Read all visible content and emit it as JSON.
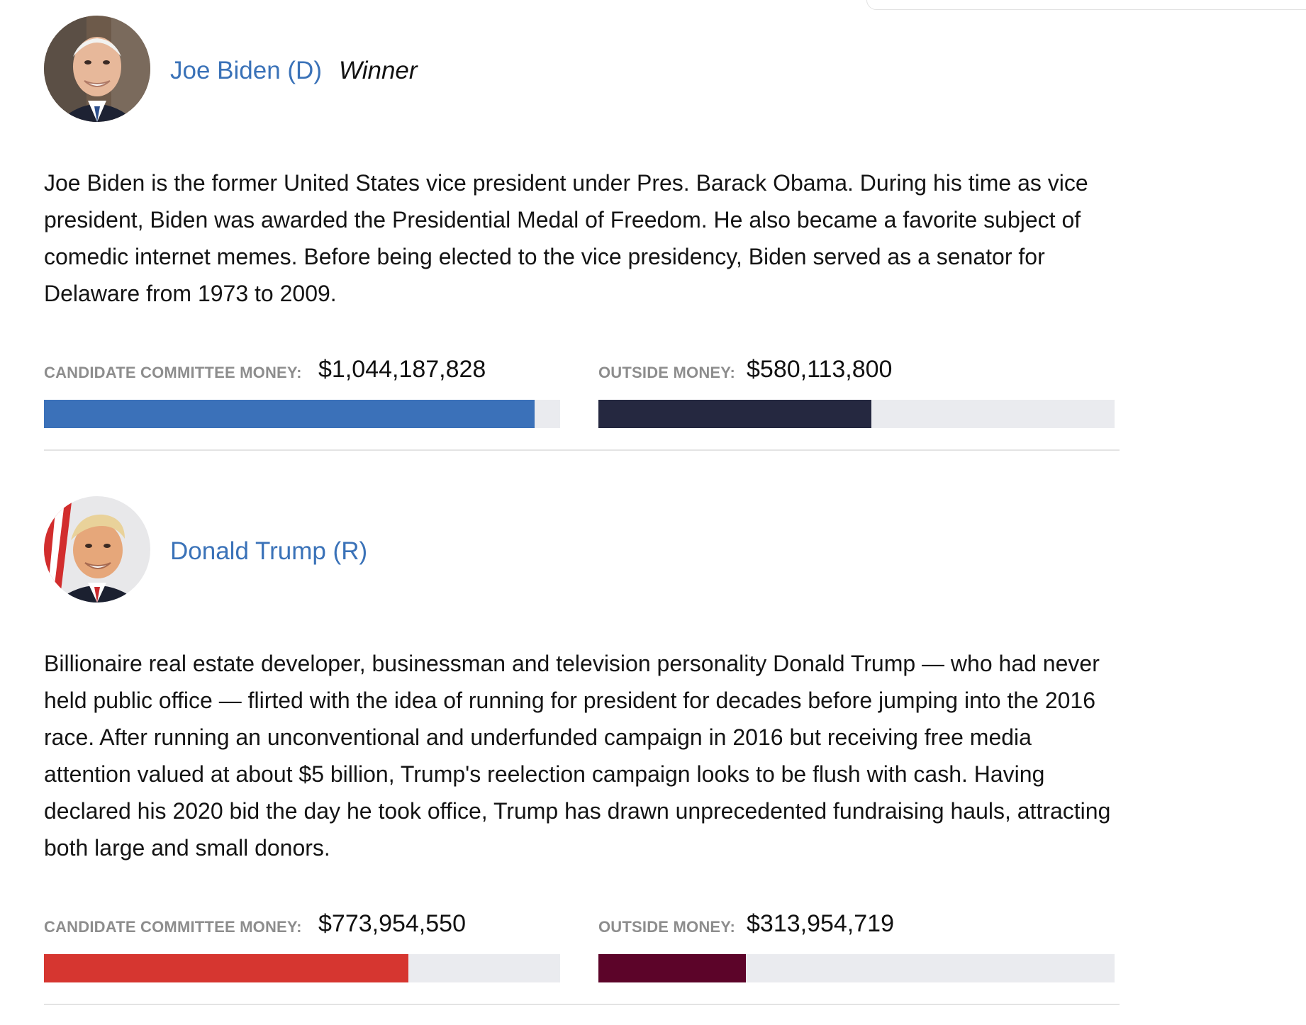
{
  "candidates": [
    {
      "name": "Joe Biden (D)",
      "winner_label": "Winner",
      "bio": "Joe Biden is the former United States vice president under Pres. Barack Obama. During his time as vice president, Biden was awarded the Presidential Medal of Freedom. He also became a favorite subject of comedic internet memes. Before being elected to the vice presidency, Biden served as a senator for Delaware from 1973 to 2009.",
      "committee_label": "CANDIDATE COMMITTEE MONEY:",
      "committee_amount": "$1,044,187,828",
      "committee_fraction": 0.951,
      "outside_label": "OUTSIDE MONEY:",
      "outside_amount": "$580,113,800",
      "outside_fraction": 0.529,
      "colors": {
        "committee_bar": "#3b71b9",
        "outside_bar": "#252840",
        "track": "#eaebef"
      }
    },
    {
      "name": "Donald Trump (R)",
      "winner_label": "",
      "bio": "Billionaire real estate developer, businessman and television personality Donald Trump — who had never held public office — flirted with the idea of running for president for decades before jumping into the 2016 race. After running an unconventional and underfunded campaign in 2016 but receiving free media attention valued at about $5 billion, Trump's reelection campaign looks to be flush with cash. Having declared his 2020 bid the day he took office, Trump has drawn unprecedented fundraising hauls, attracting both large and small donors.",
      "committee_label": "CANDIDATE COMMITTEE MONEY:",
      "committee_amount": "$773,954,550",
      "committee_fraction": 0.706,
      "outside_label": "OUTSIDE MONEY:",
      "outside_amount": "$313,954,719",
      "outside_fraction": 0.286,
      "colors": {
        "committee_bar": "#d63630",
        "outside_bar": "#5c0429",
        "track": "#eaebef"
      }
    }
  ],
  "colors": {
    "link": "#3a72b8",
    "label_gray": "#8d8d8d",
    "divider": "#e3e3e3"
  },
  "icons": {
    "biden_avatar": "portrait-photo",
    "trump_avatar": "portrait-photo"
  }
}
